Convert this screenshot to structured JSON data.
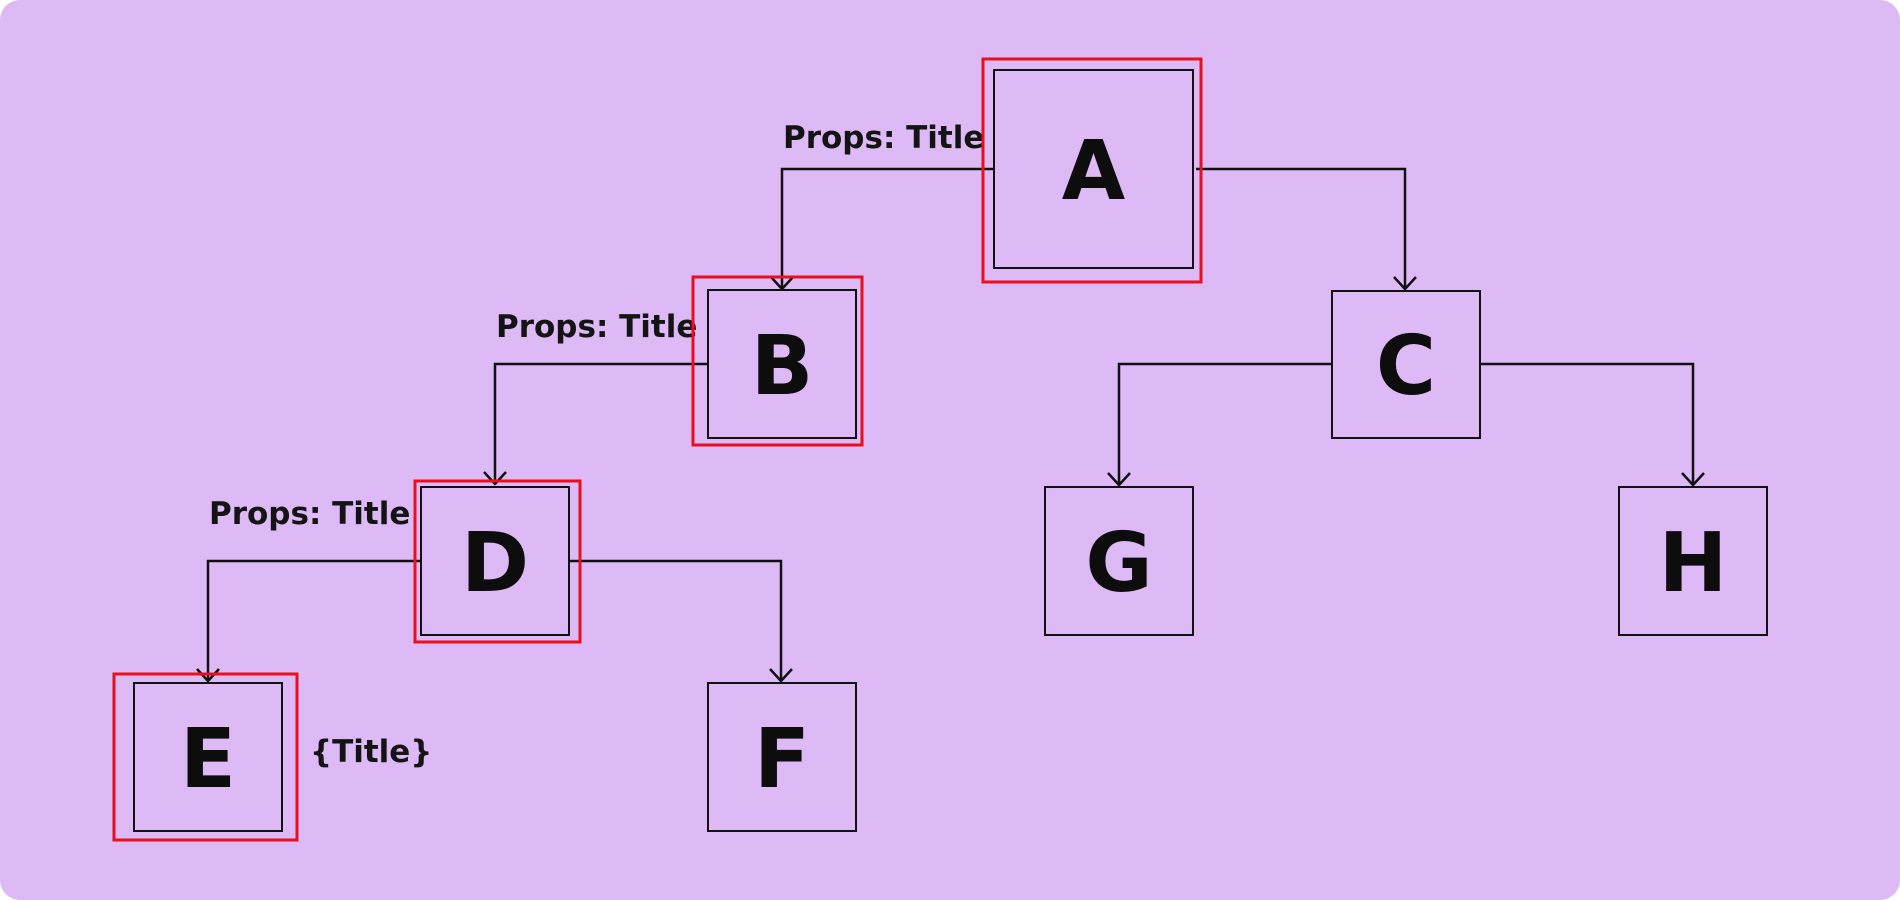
{
  "colors": {
    "background": "#ddb9f6",
    "highlight": "#e8101c",
    "stroke": "#111111"
  },
  "nodes": {
    "A": {
      "label": "A",
      "highlighted": true
    },
    "B": {
      "label": "B",
      "highlighted": true
    },
    "C": {
      "label": "C",
      "highlighted": false
    },
    "D": {
      "label": "D",
      "highlighted": true
    },
    "E": {
      "label": "E",
      "highlighted": true
    },
    "F": {
      "label": "F",
      "highlighted": false
    },
    "G": {
      "label": "G",
      "highlighted": false
    },
    "H": {
      "label": "H",
      "highlighted": false
    }
  },
  "edges": [
    {
      "from": "A",
      "to": "B",
      "label": "Props: Title"
    },
    {
      "from": "A",
      "to": "C"
    },
    {
      "from": "B",
      "to": "D",
      "label": "Props: Title"
    },
    {
      "from": "D",
      "to": "E",
      "label": "Props: Title"
    },
    {
      "from": "D",
      "to": "F"
    },
    {
      "from": "C",
      "to": "G"
    },
    {
      "from": "C",
      "to": "H"
    }
  ],
  "annotations": {
    "e_title": "{Title}"
  }
}
